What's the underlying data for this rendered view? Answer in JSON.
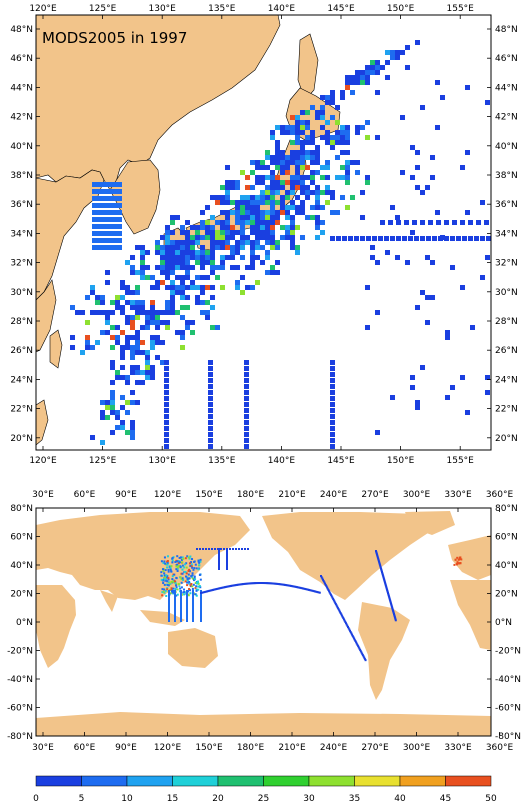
{
  "map_title": "MODS2005 in 1997",
  "regional_map": {
    "lon_labels": [
      "120°E",
      "125°E",
      "130°E",
      "135°E",
      "140°E",
      "145°E",
      "150°E",
      "155°E"
    ],
    "lat_labels": [
      "48°N",
      "46°N",
      "44°N",
      "42°N",
      "40°N",
      "38°N",
      "36°N",
      "34°N",
      "32°N",
      "30°N",
      "28°N",
      "26°N",
      "24°N",
      "22°N",
      "20°N"
    ]
  },
  "global_map": {
    "lon_labels": [
      "30°E",
      "60°E",
      "90°E",
      "120°E",
      "150°E",
      "180°E",
      "210°E",
      "240°E",
      "270°E",
      "300°E",
      "330°E",
      "360°E"
    ],
    "lat_labels": [
      "80°N",
      "60°N",
      "40°N",
      "20°N",
      "0°N",
      "-20°N",
      "-40°N",
      "-60°N",
      "-80°N"
    ]
  },
  "colorbar": {
    "labels": [
      "0",
      "5",
      "10",
      "15",
      "20",
      "25",
      "30",
      "35",
      "40",
      "45",
      "50"
    ],
    "colors": [
      "#1a3fe0",
      "#1e6cf0",
      "#1fa2f0",
      "#1fd0d8",
      "#20c070",
      "#30d030",
      "#8ee030",
      "#e8e030",
      "#f0a020",
      "#e85020"
    ]
  },
  "colors": {
    "land": "#f2c48a",
    "ocean": "#ffffff",
    "track_low": "#1a3fe0"
  }
}
